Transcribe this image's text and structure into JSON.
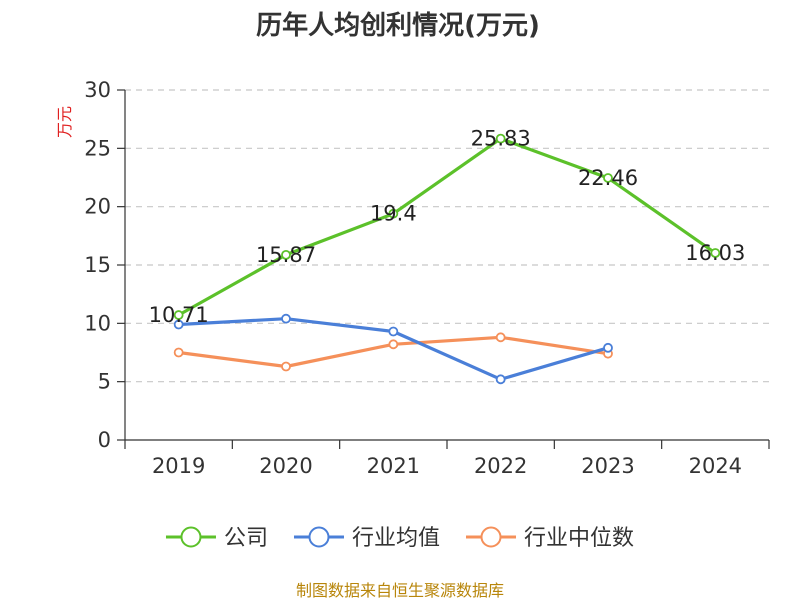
{
  "chart_data": {
    "type": "line",
    "title": "历年人均创利情况(万元)",
    "ylabel": "万元",
    "xlabel": "",
    "categories": [
      "2019",
      "2020",
      "2021",
      "2022",
      "2023",
      "2024"
    ],
    "ylim": [
      0,
      30
    ],
    "yticks": [
      0,
      5,
      10,
      15,
      20,
      25,
      30
    ],
    "grid": true,
    "legend_position": "bottom",
    "series": [
      {
        "name": "公司",
        "color": "#5cc12a",
        "values": [
          10.71,
          15.87,
          19.4,
          25.83,
          22.46,
          16.03
        ],
        "labels": [
          "10.71",
          "15.87",
          "19.4",
          "25.83",
          "22.46",
          "16.03"
        ],
        "show_labels": true
      },
      {
        "name": "行业均值",
        "color": "#4a7fd8",
        "values": [
          9.9,
          10.4,
          9.3,
          5.2,
          7.9,
          null
        ],
        "show_labels": false
      },
      {
        "name": "行业中位数",
        "color": "#f5905a",
        "values": [
          7.5,
          6.3,
          8.2,
          8.8,
          7.4,
          null
        ],
        "show_labels": false
      }
    ]
  },
  "source": "制图数据来自恒生聚源数据库"
}
